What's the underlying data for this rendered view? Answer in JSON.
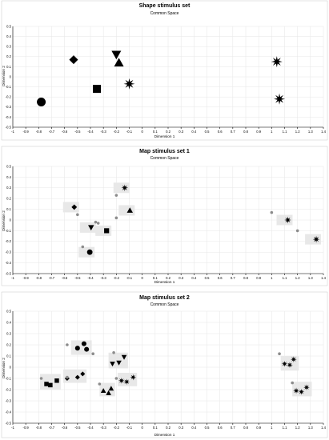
{
  "chart_data": [
    {
      "type": "scatter",
      "title": "Shape stimulus set",
      "subtitle": "Common Space",
      "xlabel": "Dimension 1",
      "ylabel": "Dimension 2",
      "xlim": [
        -1,
        1.4
      ],
      "ylim": [
        -0.5,
        0.5
      ],
      "x_ticks": [
        -1,
        -0.9,
        -0.8,
        -0.7,
        -0.6,
        -0.5,
        -0.4,
        -0.3,
        -0.2,
        -0.1,
        0,
        0.1,
        0.2,
        0.3,
        0.4,
        0.5,
        0.6,
        0.7,
        0.8,
        0.9,
        1,
        1.1,
        1.2,
        1.3,
        1.4
      ],
      "y_ticks": [
        -0.5,
        -0.4,
        -0.3,
        -0.2,
        -0.1,
        0,
        0.1,
        0.2,
        0.3,
        0.4,
        0.5
      ],
      "grid": true,
      "points": [
        {
          "marker": "circle",
          "x": -0.78,
          "y": -0.25
        },
        {
          "marker": "diamond",
          "x": -0.53,
          "y": 0.17
        },
        {
          "marker": "square",
          "x": -0.35,
          "y": -0.12
        },
        {
          "marker": "triangle-down",
          "x": -0.2,
          "y": 0.22
        },
        {
          "marker": "triangle-up",
          "x": -0.18,
          "y": 0.14
        },
        {
          "marker": "star",
          "x": -0.1,
          "y": -0.07
        },
        {
          "marker": "star",
          "x": 1.04,
          "y": 0.15
        },
        {
          "marker": "star",
          "x": 1.06,
          "y": -0.22
        }
      ]
    },
    {
      "type": "scatter",
      "title": "Map stimulus set 1",
      "subtitle": "Common Space",
      "xlabel": "Dimension 1",
      "ylabel": "Dimension 2",
      "xlim": [
        -1,
        1.4
      ],
      "ylim": [
        -0.5,
        0.5
      ],
      "x_ticks": [
        -1,
        -0.9,
        -0.8,
        -0.7,
        -0.6,
        -0.5,
        -0.4,
        -0.3,
        -0.2,
        -0.1,
        0,
        0.1,
        0.2,
        0.3,
        0.4,
        0.5,
        0.6,
        0.7,
        0.8,
        0.9,
        1,
        1.1,
        1.2,
        1.3,
        1.4
      ],
      "y_ticks": [
        -0.5,
        -0.4,
        -0.3,
        -0.2,
        -0.1,
        0,
        0.1,
        0.2,
        0.3,
        0.4,
        0.5
      ],
      "grid": true,
      "points": [
        {
          "marker": "diamond",
          "x": -0.55,
          "y": 0.12
        },
        {
          "marker": "triangle-down",
          "x": -0.42,
          "y": -0.07
        },
        {
          "marker": "square",
          "x": -0.3,
          "y": -0.1
        },
        {
          "marker": "circle",
          "x": -0.43,
          "y": -0.3
        },
        {
          "marker": "star",
          "x": -0.16,
          "y": 0.3
        },
        {
          "marker": "triangle-up",
          "x": -0.12,
          "y": 0.09
        },
        {
          "marker": "star",
          "x": 1.1,
          "y": 0.0
        },
        {
          "marker": "star",
          "x": 1.32,
          "y": -0.18
        },
        {
          "marker": "dot",
          "x": -0.5,
          "y": 0.05
        },
        {
          "marker": "dot",
          "x": -0.36,
          "y": -0.02
        },
        {
          "marker": "dot",
          "x": -0.34,
          "y": -0.03
        },
        {
          "marker": "dot",
          "x": -0.2,
          "y": 0.23
        },
        {
          "marker": "dot",
          "x": -0.2,
          "y": 0.02
        },
        {
          "marker": "dot",
          "x": -0.46,
          "y": -0.25
        },
        {
          "marker": "dot",
          "x": 1.0,
          "y": 0.07
        },
        {
          "marker": "dot",
          "x": 1.2,
          "y": -0.1
        }
      ]
    },
    {
      "type": "scatter",
      "title": "Map stimulus set 2",
      "subtitle": "Common Space",
      "xlabel": "Dimension 1",
      "ylabel": "Dimension 2",
      "xlim": [
        -1,
        1.4
      ],
      "ylim": [
        -0.5,
        0.5
      ],
      "x_ticks": [
        -1,
        -0.9,
        -0.8,
        -0.7,
        -0.6,
        -0.5,
        -0.4,
        -0.3,
        -0.2,
        -0.1,
        0,
        0.1,
        0.2,
        0.3,
        0.4,
        0.5,
        0.6,
        0.7,
        0.8,
        0.9,
        1,
        1.1,
        1.2,
        1.3,
        1.4
      ],
      "y_ticks": [
        -0.5,
        -0.4,
        -0.3,
        -0.2,
        -0.1,
        0,
        0.1,
        0.2,
        0.3,
        0.4,
        0.5
      ],
      "grid": true,
      "points": [
        {
          "marker": "circle",
          "x": -0.5,
          "y": 0.17
        },
        {
          "marker": "circle",
          "x": -0.45,
          "y": 0.21
        },
        {
          "marker": "circle",
          "x": -0.43,
          "y": 0.16
        },
        {
          "marker": "square",
          "x": -0.74,
          "y": -0.15
        },
        {
          "marker": "square",
          "x": -0.71,
          "y": -0.16
        },
        {
          "marker": "square",
          "x": -0.66,
          "y": -0.12
        },
        {
          "marker": "diamond",
          "x": -0.58,
          "y": -0.1
        },
        {
          "marker": "diamond",
          "x": -0.5,
          "y": -0.09
        },
        {
          "marker": "diamond",
          "x": -0.46,
          "y": -0.06
        },
        {
          "marker": "triangle-down",
          "x": -0.23,
          "y": 0.03
        },
        {
          "marker": "triangle-down",
          "x": -0.18,
          "y": 0.04
        },
        {
          "marker": "triangle-down",
          "x": -0.14,
          "y": 0.09
        },
        {
          "marker": "triangle-up",
          "x": -0.3,
          "y": -0.21
        },
        {
          "marker": "triangle-up",
          "x": -0.26,
          "y": -0.23
        },
        {
          "marker": "triangle-up",
          "x": -0.24,
          "y": -0.19
        },
        {
          "marker": "star",
          "x": -0.16,
          "y": -0.12
        },
        {
          "marker": "star",
          "x": -0.12,
          "y": -0.13
        },
        {
          "marker": "star",
          "x": -0.07,
          "y": -0.09
        },
        {
          "marker": "star",
          "x": 1.1,
          "y": 0.03
        },
        {
          "marker": "star",
          "x": 1.14,
          "y": 0.02
        },
        {
          "marker": "star",
          "x": 1.17,
          "y": 0.07
        },
        {
          "marker": "star",
          "x": 1.19,
          "y": -0.21
        },
        {
          "marker": "star",
          "x": 1.23,
          "y": -0.22
        },
        {
          "marker": "star",
          "x": 1.27,
          "y": -0.18
        },
        {
          "marker": "dot",
          "x": -0.58,
          "y": 0.2
        },
        {
          "marker": "dot",
          "x": -0.38,
          "y": 0.12
        },
        {
          "marker": "dot",
          "x": -0.78,
          "y": -0.1
        },
        {
          "marker": "dot",
          "x": -0.58,
          "y": -0.09
        },
        {
          "marker": "dot",
          "x": -0.33,
          "y": -0.15
        },
        {
          "marker": "dot",
          "x": -0.22,
          "y": 0.13
        },
        {
          "marker": "dot",
          "x": -0.2,
          "y": -0.1
        },
        {
          "marker": "dot",
          "x": 1.06,
          "y": 0.12
        },
        {
          "marker": "dot",
          "x": 1.16,
          "y": -0.14
        }
      ],
      "highlight_boxes": [
        {
          "x": [
            -0.55,
            -0.39
          ],
          "y": [
            0.11,
            0.24
          ]
        },
        {
          "x": [
            -0.79,
            -0.63
          ],
          "y": [
            -0.2,
            -0.06
          ]
        },
        {
          "x": [
            -0.61,
            -0.43
          ],
          "y": [
            -0.14,
            -0.02
          ]
        },
        {
          "x": [
            -0.26,
            -0.11
          ],
          "y": [
            -0.01,
            0.13
          ]
        },
        {
          "x": [
            -0.33,
            -0.21
          ],
          "y": [
            -0.26,
            -0.14
          ]
        },
        {
          "x": [
            -0.19,
            -0.04
          ],
          "y": [
            -0.17,
            -0.05
          ]
        },
        {
          "x": [
            1.07,
            1.21
          ],
          "y": [
            -0.03,
            0.1
          ]
        },
        {
          "x": [
            1.16,
            1.31
          ],
          "y": [
            -0.26,
            -0.13
          ]
        }
      ]
    }
  ]
}
